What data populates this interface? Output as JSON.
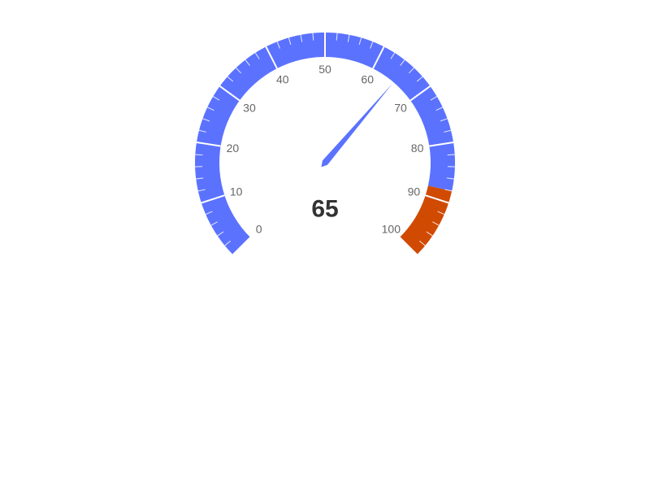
{
  "chart_data": {
    "type": "gauge",
    "value": 65,
    "value_label": "65",
    "min": 0,
    "max": 100,
    "major_ticks": [
      0,
      10,
      20,
      30,
      40,
      50,
      60,
      70,
      80,
      90,
      100
    ],
    "tick_labels": [
      "0",
      "10",
      "20",
      "30",
      "40",
      "50",
      "60",
      "70",
      "80",
      "90",
      "100"
    ],
    "minor_tick_step": 2,
    "bands": [
      {
        "from": 0,
        "to": 88,
        "color": "#5B72FF"
      },
      {
        "from": 88,
        "to": 100,
        "color": "#D04A02"
      }
    ],
    "needle_color": "#5B72FF"
  }
}
